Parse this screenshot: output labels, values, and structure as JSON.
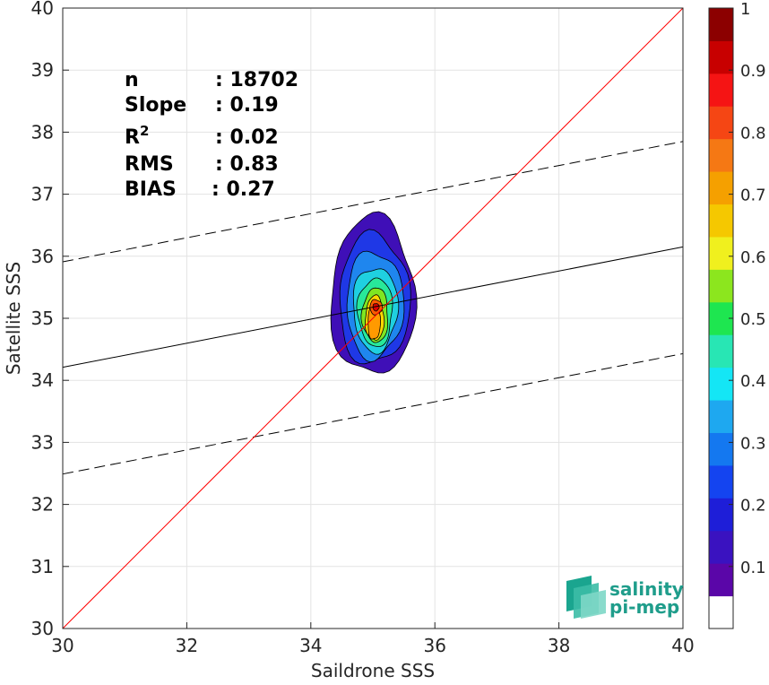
{
  "chart_data": {
    "type": "scatter",
    "title": "",
    "xlabel": "Saildrone SSS",
    "ylabel": "Satellite SSS",
    "xlim": [
      30,
      40
    ],
    "ylim": [
      30,
      40
    ],
    "xticks": [
      "30",
      "32",
      "34",
      "36",
      "38",
      "40"
    ],
    "yticks": [
      "30",
      "31",
      "32",
      "33",
      "34",
      "35",
      "36",
      "37",
      "38",
      "39",
      "40"
    ],
    "grid": true,
    "stats": [
      {
        "label": "n",
        "value": ": 18702"
      },
      {
        "label": "Slope",
        "value": ": 0.19"
      },
      {
        "label": "R",
        "sup": "2",
        "value": ": 0.02"
      },
      {
        "label": "RMS",
        "value": ": 0.83"
      },
      {
        "label": "BIAS",
        "value": ": 0.27"
      }
    ],
    "lines": {
      "one_to_one": {
        "x": [
          30,
          40
        ],
        "y": [
          30,
          40
        ],
        "color": "#ff0000"
      },
      "fit": {
        "x": [
          30,
          40
        ],
        "y": [
          34.21,
          36.15
        ],
        "color": "#000000"
      },
      "upper_bound": {
        "x": [
          30,
          40
        ],
        "y": [
          35.91,
          37.85
        ],
        "style": "dashed"
      },
      "lower_bound": {
        "x": [
          30,
          40
        ],
        "y": [
          32.49,
          34.43
        ],
        "style": "dashed"
      }
    },
    "density_contours": [
      {
        "level": 0.05,
        "color": "#3f0fb7",
        "cx": 35.0,
        "cy": 35.35,
        "rx": 0.68,
        "ry": 1.28
      },
      {
        "level": 0.15,
        "color": "#1f38e6",
        "cx": 35.02,
        "cy": 35.3,
        "rx": 0.57,
        "ry": 1.05
      },
      {
        "level": 0.25,
        "color": "#1f86ee",
        "cx": 35.03,
        "cy": 35.22,
        "rx": 0.46,
        "ry": 0.86
      },
      {
        "level": 0.35,
        "color": "#1fd0e0",
        "cx": 35.04,
        "cy": 35.15,
        "rx": 0.36,
        "ry": 0.68
      },
      {
        "level": 0.45,
        "color": "#28e89a",
        "cx": 35.04,
        "cy": 35.1,
        "rx": 0.28,
        "ry": 0.55
      },
      {
        "level": 0.55,
        "color": "#7fe622",
        "cx": 35.04,
        "cy": 35.05,
        "rx": 0.21,
        "ry": 0.44
      },
      {
        "level": 0.65,
        "color": "#ffd800",
        "cx": 35.03,
        "cy": 35.0,
        "rx": 0.15,
        "ry": 0.36
      },
      {
        "level": 0.75,
        "color": "#ff9a00",
        "cx": 35.02,
        "cy": 34.95,
        "rx": 0.1,
        "ry": 0.3
      },
      {
        "level": 0.85,
        "color": "#ff5a00",
        "cx": 35.05,
        "cy": 35.18,
        "rx": 0.1,
        "ry": 0.12
      },
      {
        "level": 0.95,
        "color": "#e00000",
        "cx": 35.05,
        "cy": 35.18,
        "rx": 0.05,
        "ry": 0.06
      }
    ],
    "colorbar": {
      "range": [
        0,
        1
      ],
      "ticks": [
        "0.1",
        "0.2",
        "0.3",
        "0.4",
        "0.5",
        "0.6",
        "0.7",
        "0.8",
        "0.9",
        "1"
      ],
      "colors": [
        "#ffffff",
        "#5a06a8",
        "#3a12c0",
        "#1e1ed8",
        "#1444f0",
        "#1478f0",
        "#1ea8f0",
        "#14e6f5",
        "#28e6b4",
        "#1ee650",
        "#8ce61e",
        "#f0f01e",
        "#f5c800",
        "#f5a000",
        "#f57814",
        "#f54614",
        "#f51414",
        "#c80000",
        "#8c0000"
      ]
    }
  },
  "logo": {
    "line1": "salinity",
    "line2": "pi-mep"
  }
}
